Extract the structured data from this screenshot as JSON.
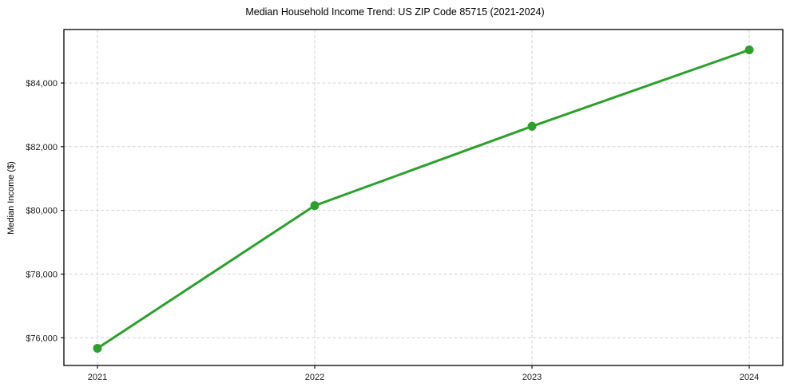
{
  "chart_data": {
    "type": "line",
    "title": "Median Household Income Trend: US ZIP Code 85715 (2021-2024)",
    "xlabel": "",
    "ylabel": "Median Income ($)",
    "categories": [
      "2021",
      "2022",
      "2023",
      "2024"
    ],
    "series": [
      {
        "name": "Median Household Income",
        "values": [
          75670,
          80150,
          82640,
          85040
        ],
        "color": "#2ca02c",
        "marker": "circle",
        "line_style": "solid"
      }
    ],
    "y_ticks": [
      76000,
      78000,
      80000,
      82000,
      84000
    ],
    "y_tick_labels": [
      "$76,000",
      "$78,000",
      "$80,000",
      "$82,000",
      "$84,000"
    ],
    "ylim": [
      75130,
      85680
    ],
    "grid": "dashed",
    "grid_color": "#cccccc",
    "axis_color": "#000000",
    "text_color": "#1a1a1a",
    "background_color": "#ffffff",
    "legend": "none"
  }
}
